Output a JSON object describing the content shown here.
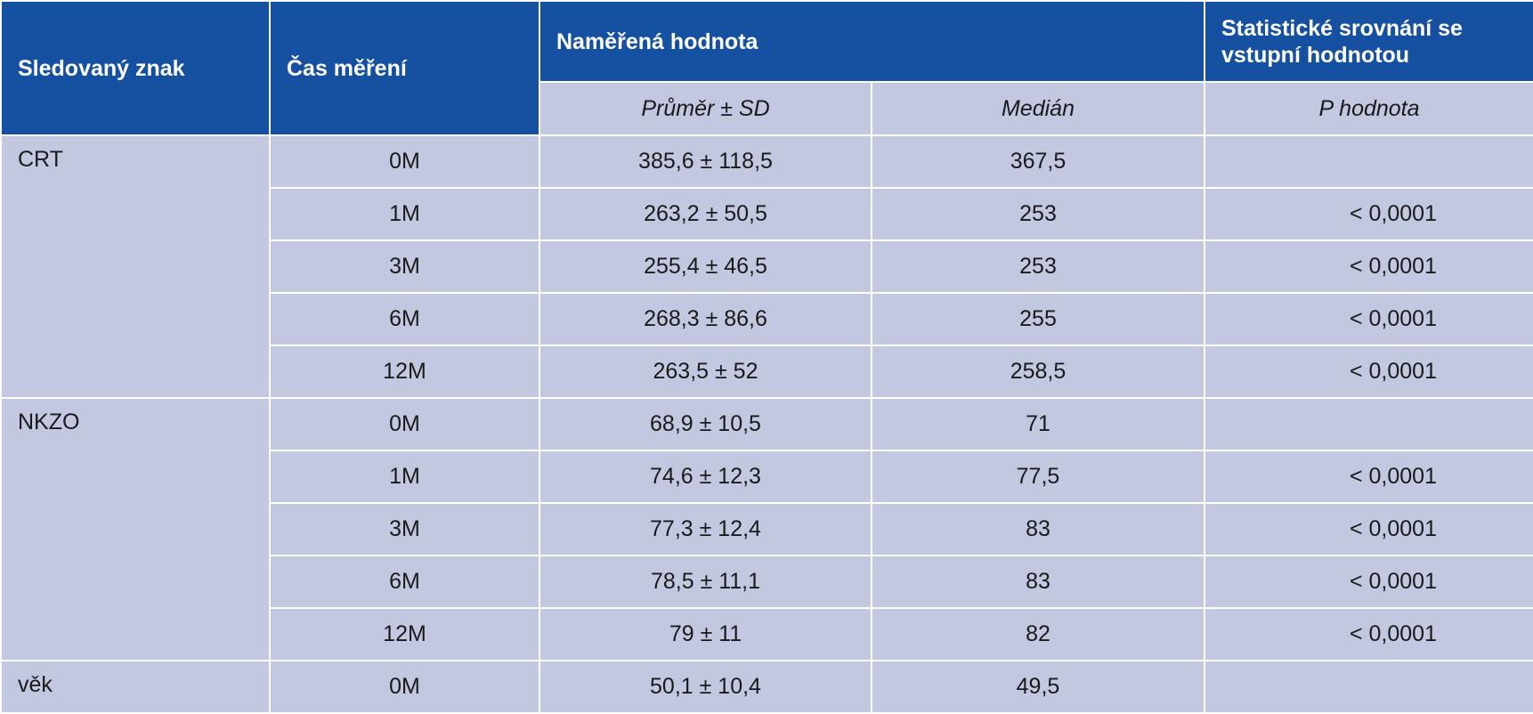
{
  "headers": {
    "trait": "Sledovaný znak",
    "time": "Čas měření",
    "measured": "Naměřená hodnota",
    "comparison": "Statistické srovnání se vstupní hodnotou"
  },
  "subheaders": {
    "mean_sd": "Průměr ± SD",
    "median": "Medián",
    "p_value": "P hodnota"
  },
  "groups": [
    {
      "name": "CRT",
      "rows": [
        {
          "time": "0M",
          "mean_sd": "385,6 ± 118,5",
          "median": "367,5",
          "p": ""
        },
        {
          "time": "1M",
          "mean_sd": "263,2 ± 50,5",
          "median": "253",
          "p": "< 0,0001"
        },
        {
          "time": "3M",
          "mean_sd": "255,4 ± 46,5",
          "median": "253",
          "p": "< 0,0001"
        },
        {
          "time": "6M",
          "mean_sd": "268,3 ± 86,6",
          "median": "255",
          "p": "< 0,0001"
        },
        {
          "time": "12M",
          "mean_sd": "263,5 ± 52",
          "median": "258,5",
          "p": "< 0,0001"
        }
      ]
    },
    {
      "name": "NKZO",
      "rows": [
        {
          "time": "0M",
          "mean_sd": "68,9 ± 10,5",
          "median": "71",
          "p": ""
        },
        {
          "time": "1M",
          "mean_sd": "74,6 ± 12,3",
          "median": "77,5",
          "p": "< 0,0001"
        },
        {
          "time": "3M",
          "mean_sd": "77,3 ± 12,4",
          "median": "83",
          "p": "< 0,0001"
        },
        {
          "time": "6M",
          "mean_sd": "78,5 ± 11,1",
          "median": "83",
          "p": "< 0,0001"
        },
        {
          "time": "12M",
          "mean_sd": "79 ± 11",
          "median": "82",
          "p": "< 0,0001"
        }
      ]
    },
    {
      "name": "věk",
      "rows": [
        {
          "time": "0M",
          "mean_sd": "50,1 ± 10,4",
          "median": "49,5",
          "p": ""
        }
      ]
    }
  ]
}
